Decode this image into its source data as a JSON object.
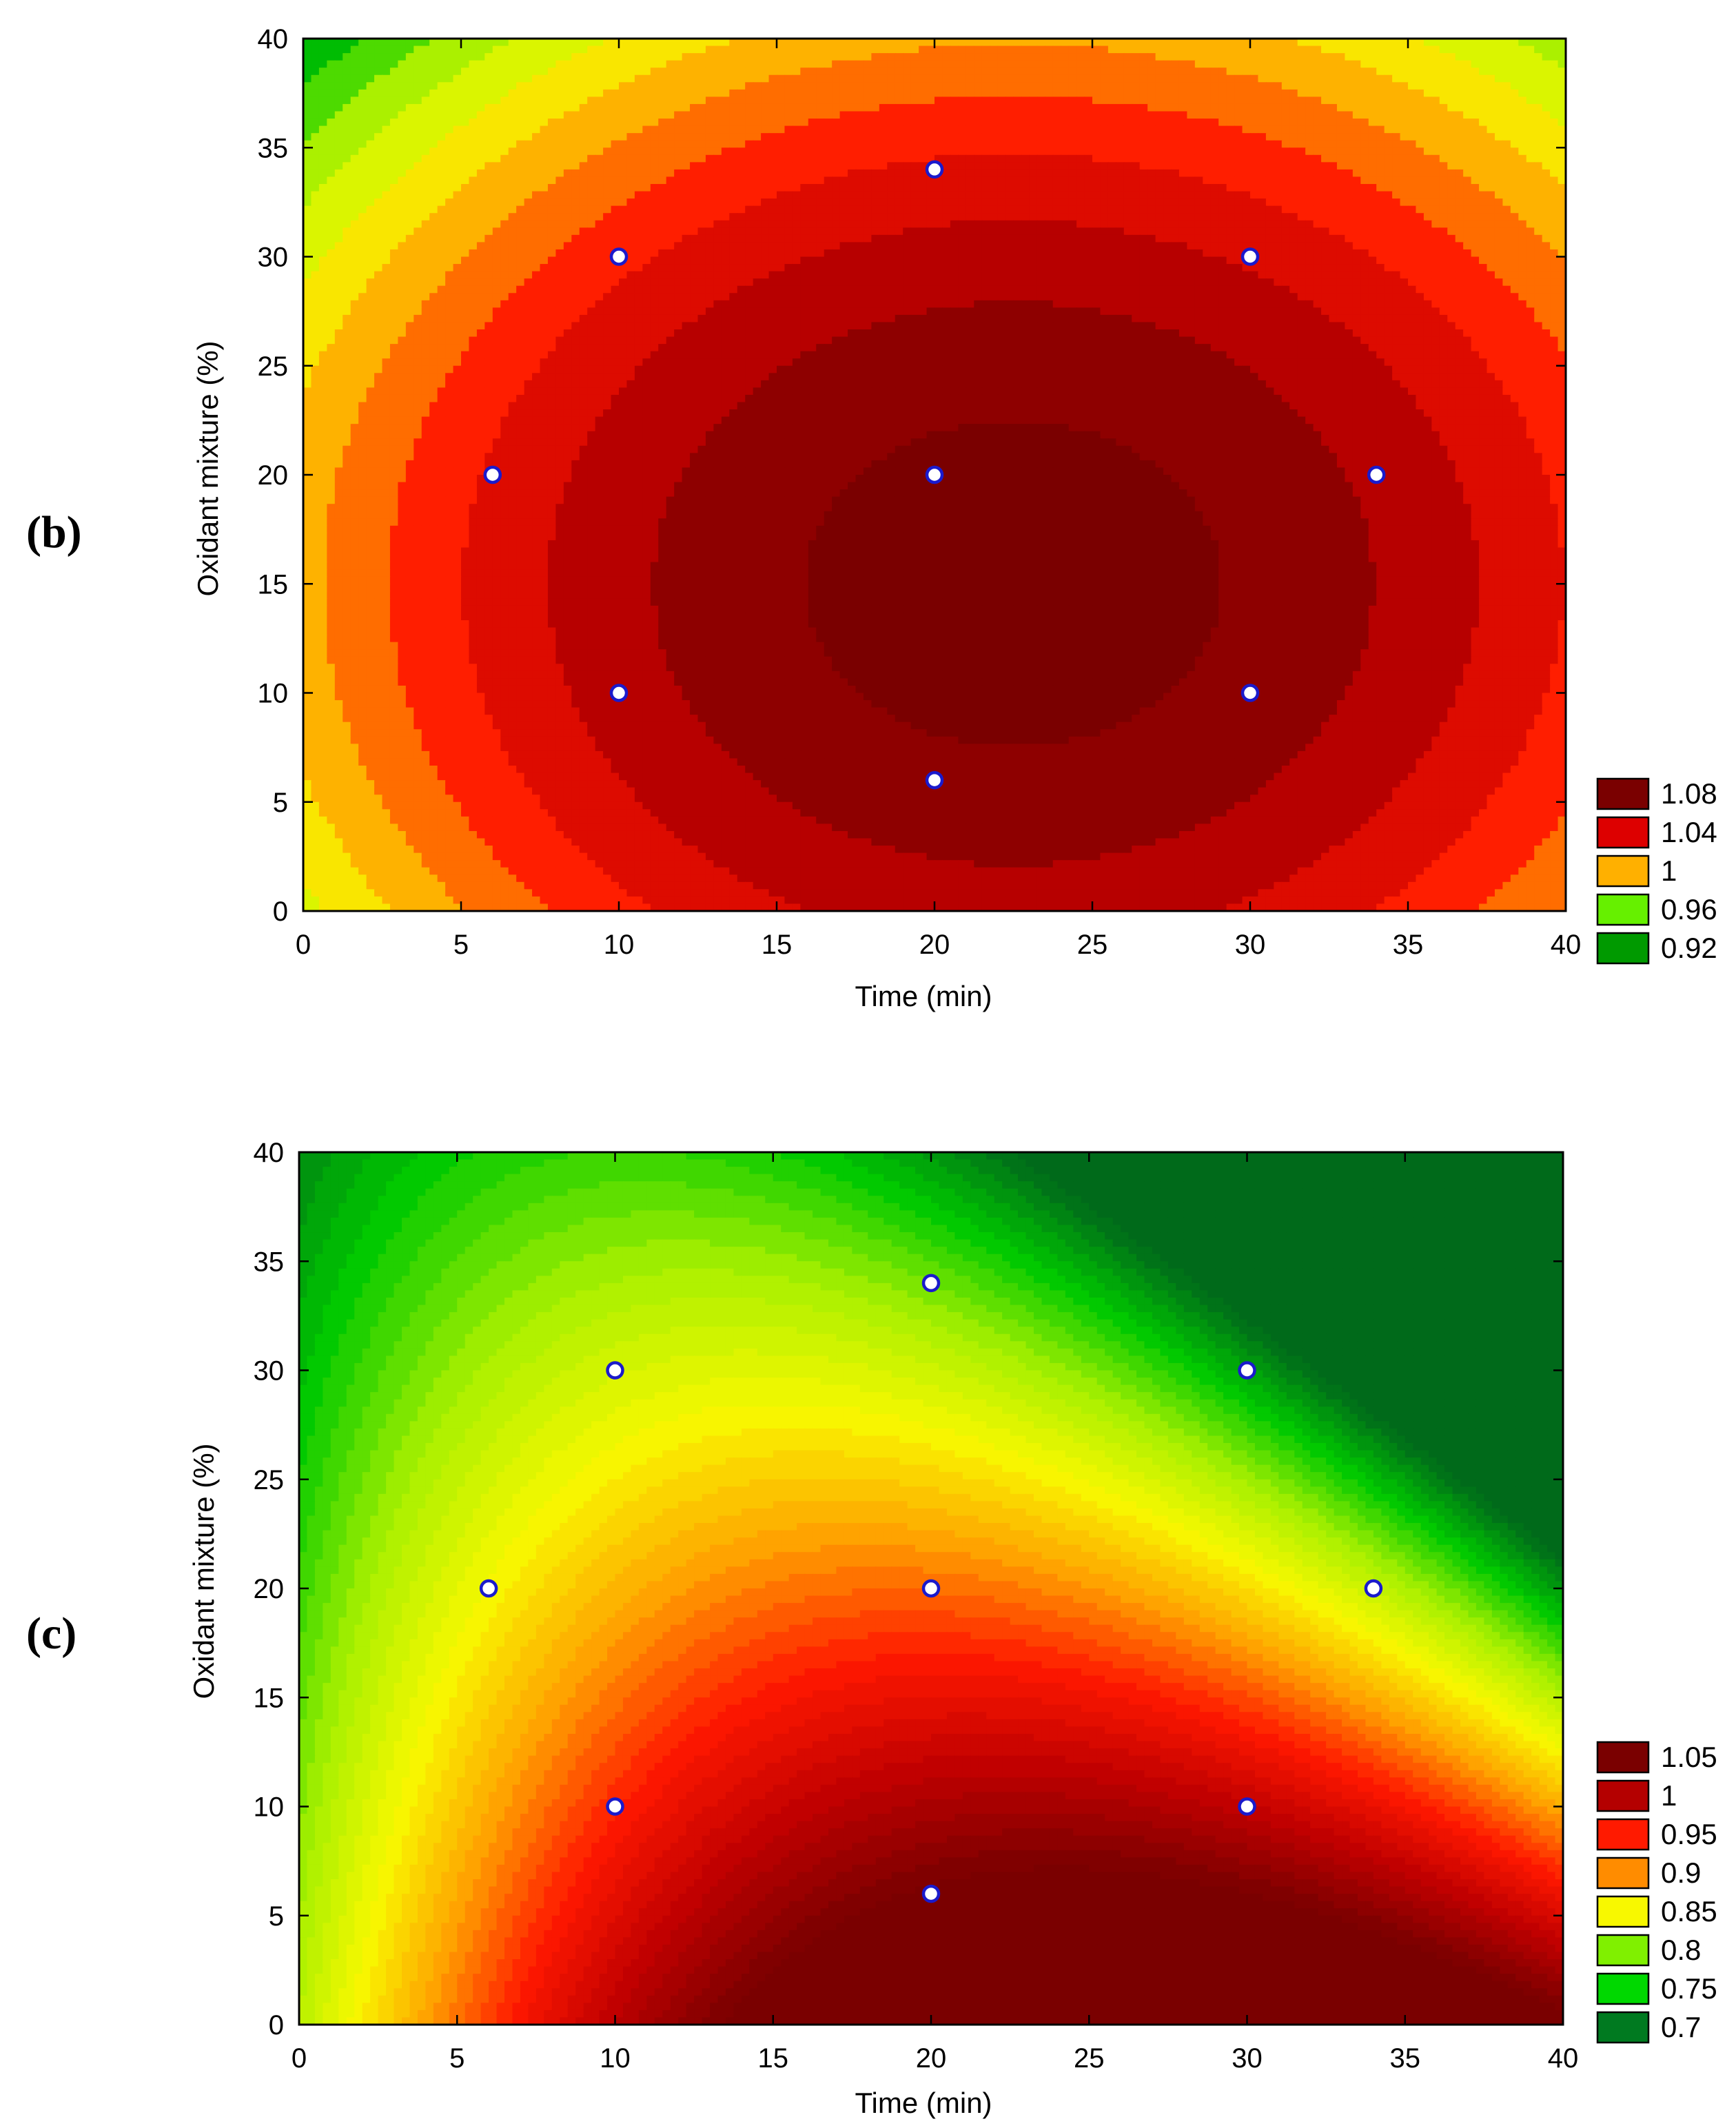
{
  "chart_data": [
    {
      "type": "contour",
      "panel_label": "(b)",
      "xlabel": "Time (min)",
      "ylabel": "Oxidant mixture (%)",
      "xlim": [
        0,
        40
      ],
      "ylim": [
        0,
        40
      ],
      "xticks": [
        0,
        5,
        10,
        15,
        20,
        25,
        30,
        35,
        40
      ],
      "yticks": [
        0,
        5,
        10,
        15,
        20,
        25,
        30,
        35,
        40
      ],
      "surface": {
        "model": "ellipse",
        "center": [
          22.5,
          15
        ],
        "peak": 1.11,
        "ax": 0.00023,
        "ay": 0.00018
      },
      "levels_min": 0.86,
      "levels_max": 1.1,
      "levels_step": 0.02,
      "legend": [
        {
          "label": "1.08",
          "color": "#7a0000"
        },
        {
          "label": "1.04",
          "color": "#dd0000"
        },
        {
          "label": "1",
          "color": "#ffb000"
        },
        {
          "label": "0.96",
          "color": "#66f000"
        },
        {
          "label": "0.92",
          "color": "#009a00"
        }
      ],
      "design_points": [
        {
          "x": 20,
          "y": 34
        },
        {
          "x": 10,
          "y": 30
        },
        {
          "x": 30,
          "y": 30
        },
        {
          "x": 6,
          "y": 20
        },
        {
          "x": 20,
          "y": 20
        },
        {
          "x": 34,
          "y": 20
        },
        {
          "x": 10,
          "y": 10
        },
        {
          "x": 30,
          "y": 10
        },
        {
          "x": 20,
          "y": 6
        }
      ]
    },
    {
      "type": "contour",
      "panel_label": "(c)",
      "xlabel": "Time (min)",
      "ylabel": "Oxidant mixture (%)",
      "xlim": [
        0,
        40
      ],
      "ylim": [
        0,
        40
      ],
      "xticks": [
        0,
        5,
        10,
        15,
        20,
        25,
        30,
        35,
        40
      ],
      "yticks": [
        0,
        5,
        10,
        15,
        20,
        25,
        30,
        35,
        40
      ],
      "surface": {
        "model": "saddle",
        "b0": 0.8,
        "bx": 0.0258,
        "bxx": -0.000475,
        "by": -0.00225,
        "byy": -6.3e-06,
        "bxy": -0.0004
      },
      "levels_min": 0.68,
      "levels_max": 1.06,
      "levels_step": 0.01,
      "legend": [
        {
          "label": "1.05",
          "color": "#7a0000"
        },
        {
          "label": "1",
          "color": "#b40000"
        },
        {
          "label": "0.95",
          "color": "#ff1a00"
        },
        {
          "label": "0.9",
          "color": "#ff8c00"
        },
        {
          "label": "0.85",
          "color": "#f8f800"
        },
        {
          "label": "0.8",
          "color": "#80f000"
        },
        {
          "label": "0.75",
          "color": "#00d800"
        },
        {
          "label": "0.7",
          "color": "#007a20"
        }
      ],
      "design_points": [
        {
          "x": 20,
          "y": 34
        },
        {
          "x": 10,
          "y": 30
        },
        {
          "x": 30,
          "y": 30
        },
        {
          "x": 6,
          "y": 20
        },
        {
          "x": 20,
          "y": 20
        },
        {
          "x": 34,
          "y": 20
        },
        {
          "x": 10,
          "y": 10
        },
        {
          "x": 30,
          "y": 10
        },
        {
          "x": 20,
          "y": 6
        }
      ]
    }
  ]
}
